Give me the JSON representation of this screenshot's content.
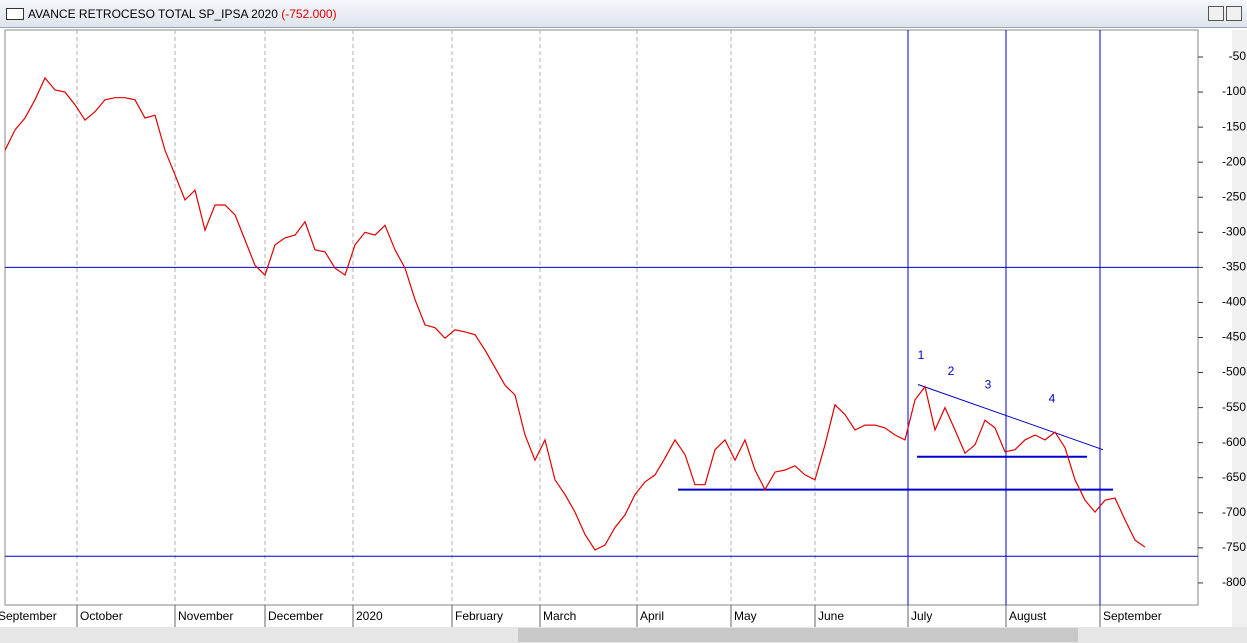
{
  "chart_data": {
    "type": "line",
    "title": "AVANCE RETROCESO TOTAL SP_IPSA 2020",
    "title_value": "(-752.000)",
    "color": "#e00000",
    "annotation_color": "#0000cc",
    "values": [
      -183,
      -154,
      -137,
      -111,
      -80,
      -97,
      -100,
      -118,
      -140,
      -128,
      -111,
      -108,
      -108,
      -111,
      -137,
      -133,
      -183,
      -218,
      -254,
      -240,
      -297,
      -261,
      -261,
      -275,
      -311,
      -347,
      -361,
      -318,
      -308,
      -304,
      -285,
      -325,
      -328,
      -351,
      -361,
      -318,
      -300,
      -304,
      -290,
      -325,
      -351,
      -396,
      -432,
      -436,
      -451,
      -439,
      -442,
      -446,
      -468,
      -493,
      -518,
      -532,
      -589,
      -625,
      -596,
      -653,
      -674,
      -699,
      -731,
      -753,
      -746,
      -721,
      -703,
      -674,
      -656,
      -646,
      -622,
      -596,
      -617,
      -660,
      -660,
      -610,
      -596,
      -625,
      -596,
      -639,
      -667,
      -642,
      -639,
      -633,
      -646,
      -653,
      -603,
      -546,
      -560,
      -582,
      -575,
      -575,
      -579,
      -589,
      -596,
      -539,
      -520,
      -582,
      -550,
      -582,
      -615,
      -603,
      -568,
      -579,
      -613,
      -610,
      -596,
      -589,
      -596,
      -585,
      -607,
      -653,
      -682,
      -699,
      -682,
      -679,
      -710,
      -739,
      -749
    ],
    "xlim": [
      0,
      119.3
    ],
    "xticks": [
      {
        "value": -1,
        "label": "September"
      },
      {
        "value": 7.2,
        "label": "October"
      },
      {
        "value": 17,
        "label": "November"
      },
      {
        "value": 26,
        "label": "December"
      },
      {
        "value": 34.8,
        "label": "2020"
      },
      {
        "value": 44.7,
        "label": "February"
      },
      {
        "value": 53.5,
        "label": "March"
      },
      {
        "value": 63.2,
        "label": "April"
      },
      {
        "value": 72.6,
        "label": "May"
      },
      {
        "value": 81,
        "label": "June"
      },
      {
        "value": 90.3,
        "label": "July"
      },
      {
        "value": 100.1,
        "label": "August"
      },
      {
        "value": 109.5,
        "label": "September"
      }
    ],
    "ylim": [
      -831.5,
      -11.5
    ],
    "yticks": [
      -50,
      -100,
      -150,
      -200,
      -250,
      -300,
      -350,
      -400,
      -450,
      -500,
      -550,
      -600,
      -650,
      -700,
      -750,
      -800
    ],
    "grid": true,
    "hlines": [
      -350,
      -762
    ],
    "vlines": [
      90.3,
      100.1,
      109.5
    ],
    "segments": [
      {
        "x": [
          67.3,
          110.8
        ],
        "y": [
          -667,
          -667
        ]
      },
      {
        "x": [
          91.2,
          108.2
        ],
        "y": [
          -620,
          -620
        ]
      },
      {
        "x": [
          91.3,
          109.8
        ],
        "y": [
          -517,
          -610
        ]
      }
    ],
    "annotations": [
      {
        "text": "1",
        "x": 91.6,
        "y": -476
      },
      {
        "text": "2",
        "x": 94.6,
        "y": -499
      },
      {
        "text": "3",
        "x": 98.3,
        "y": -518
      },
      {
        "text": "4",
        "x": 104.7,
        "y": -538
      }
    ]
  }
}
